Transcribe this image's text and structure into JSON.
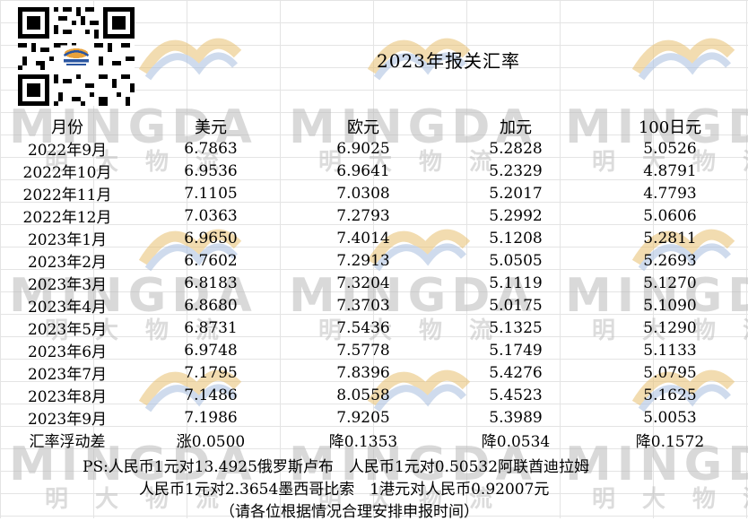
{
  "title": "2023年报关汇率",
  "watermark": {
    "brand": "MINGDA",
    "cn": "明大物流"
  },
  "columns": [
    "月份",
    "美元",
    "欧元",
    "加元",
    "100日元"
  ],
  "rows": [
    [
      "2022年9月",
      "6.7863",
      "6.9025",
      "5.2828",
      "5.0526"
    ],
    [
      "2022年10月",
      "6.9536",
      "6.9641",
      "5.2329",
      "4.8791"
    ],
    [
      "2022年11月",
      "7.1105",
      "7.0308",
      "5.2017",
      "4.7793"
    ],
    [
      "2022年12月",
      "7.0363",
      "7.2793",
      "5.2992",
      "5.0606"
    ],
    [
      "2023年1月",
      "6.9650",
      "7.4014",
      "5.1208",
      "5.2811"
    ],
    [
      "2023年2月",
      "6.7602",
      "7.2913",
      "5.0505",
      "5.2693"
    ],
    [
      "2023年3月",
      "6.8183",
      "7.3204",
      "5.1119",
      "5.1270"
    ],
    [
      "2023年4月",
      "6.8680",
      "7.3703",
      "5.0175",
      "5.1090"
    ],
    [
      "2023年5月",
      "6.8731",
      "7.5436",
      "5.1325",
      "5.1290"
    ],
    [
      "2023年6月",
      "6.9748",
      "7.5778",
      "5.1749",
      "5.1133"
    ],
    [
      "2023年7月",
      "7.1795",
      "7.8396",
      "5.4276",
      "5.0795"
    ],
    [
      "2023年8月",
      "7.1486",
      "8.0558",
      "5.4523",
      "5.1625"
    ],
    [
      "2023年9月",
      "7.1986",
      "7.9205",
      "5.3989",
      "5.0053"
    ]
  ],
  "fluctuation": [
    "汇率浮动差",
    "涨0.0500",
    "降0.1353",
    "降0.0534",
    "降0.1572"
  ],
  "notes": {
    "line1": "PS:人民币1元对13.4925俄罗斯卢布　人民币1元对0.50532阿联酋迪拉姆",
    "line2": "人民币1元对2.3654墨西哥比索　1港元对人民币0.92007元",
    "line3": "（请各位根据情况合理安排申报时间）"
  },
  "colors": {
    "watermark_blue": "#6f93c8",
    "watermark_orange": "#e8c070",
    "text": "#000000"
  }
}
